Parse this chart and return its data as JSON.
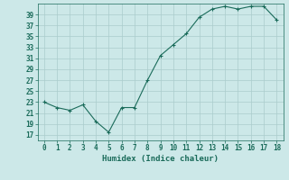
{
  "x": [
    0,
    1,
    2,
    3,
    4,
    5,
    6,
    7,
    8,
    9,
    10,
    11,
    12,
    13,
    14,
    15,
    16,
    17,
    18
  ],
  "y": [
    23,
    22,
    21.5,
    22.5,
    19.5,
    17.5,
    22,
    22,
    27,
    31.5,
    33.5,
    35.5,
    38.5,
    40,
    40.5,
    40,
    40.5,
    40.5,
    38
  ],
  "line_color": "#1a6b5a",
  "marker": "+",
  "bg_color": "#cce8e8",
  "grid_color": "#aacccc",
  "xlabel": "Humidex (Indice chaleur)",
  "xlim": [
    -0.5,
    18.5
  ],
  "ylim": [
    16,
    41
  ],
  "yticks": [
    17,
    19,
    21,
    23,
    25,
    27,
    29,
    31,
    33,
    35,
    37,
    39
  ],
  "xticks": [
    0,
    1,
    2,
    3,
    4,
    5,
    6,
    7,
    8,
    9,
    10,
    11,
    12,
    13,
    14,
    15,
    16,
    17,
    18
  ],
  "tick_color": "#1a6b5a",
  "font_color": "#1a6b5a",
  "label_fontsize": 6.5,
  "tick_fontsize": 5.5,
  "linewidth": 0.8,
  "markersize": 3.5,
  "markeredgewidth": 0.8
}
